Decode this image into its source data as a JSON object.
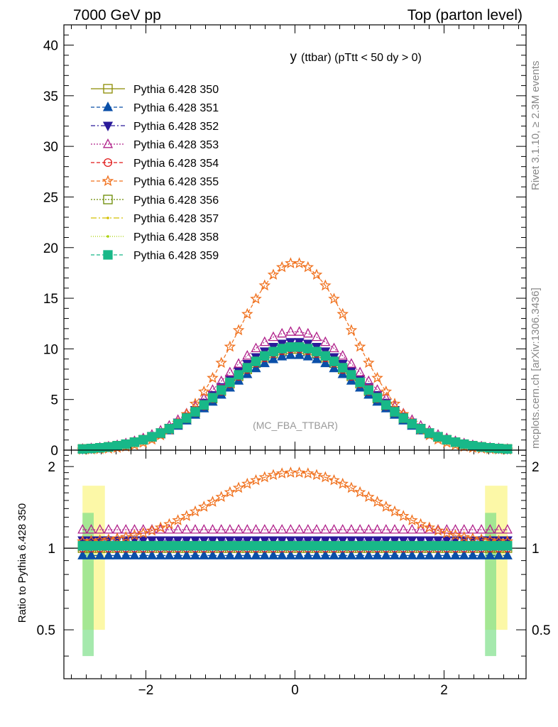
{
  "header": {
    "left": "7000 GeV pp",
    "right": "Top (parton level)"
  },
  "side_text": {
    "rivet": "Rivet 3.1.10, ≥ 2.3M events",
    "mcplots": "mcplots.cern.ch [arXiv:1306.3436]"
  },
  "chart_data": {
    "type": "line",
    "title": "y (ttbar) (pTtt < 50 dy > 0)",
    "title_main": "y",
    "title_sub": "(ttbar) (pTtt < 50 dy > 0)",
    "watermark": "(MC_FBA_TTBAR)",
    "main_panel": {
      "ylim": [
        0,
        42
      ],
      "yticks": [
        0,
        5,
        10,
        15,
        20,
        25,
        30,
        35,
        40
      ]
    },
    "ratio_panel": {
      "ylabel": "Ratio to Pythia 6.428 350",
      "ylim": [
        0.33,
        2.3
      ],
      "yticks": [
        0.5,
        1,
        2
      ],
      "reference_line": 1
    },
    "xlim": [
      -3.1,
      3.1
    ],
    "xticks": [
      -2,
      0,
      2
    ],
    "grid": false,
    "legend_position": "top-left",
    "x_range": [
      -2.85,
      2.85
    ],
    "n_bins": 50,
    "series": [
      {
        "name": "Pythia 6.428 350",
        "peak": 10.0,
        "ratio": 1.0,
        "color": "#8b8b00",
        "marker": "square-open",
        "dash": "",
        "sigma": 0.95
      },
      {
        "name": "Pythia 6.428 351",
        "peak": 9.4,
        "ratio": 0.94,
        "color": "#0a4fa8",
        "marker": "triangle-up",
        "dash": "5,3",
        "sigma": 0.95
      },
      {
        "name": "Pythia 6.428 352",
        "peak": 10.7,
        "ratio": 1.07,
        "color": "#2a1a9a",
        "marker": "triangle-down",
        "dash": "6,3,2,3",
        "sigma": 0.95
      },
      {
        "name": "Pythia 6.428 353",
        "peak": 11.7,
        "ratio": 1.17,
        "color": "#b0208a",
        "marker": "triangle-open",
        "dash": "2,2",
        "sigma": 0.95
      },
      {
        "name": "Pythia 6.428 354",
        "peak": 10.0,
        "ratio": 1.0,
        "color": "#e01818",
        "marker": "circle-open",
        "dash": "5,3",
        "sigma": 0.95
      },
      {
        "name": "Pythia 6.428 355",
        "peak": 18.5,
        "ratio": 1.85,
        "color": "#f0701c",
        "marker": "star-open",
        "dash": "5,3",
        "sigma": 0.8
      },
      {
        "name": "Pythia 6.428 356",
        "peak": 10.2,
        "ratio": 1.02,
        "color": "#6a8a00",
        "marker": "square-open",
        "dash": "2,2",
        "sigma": 0.95
      },
      {
        "name": "Pythia 6.428 357",
        "peak": 10.3,
        "ratio": 1.03,
        "color": "#d4c000",
        "marker": "dot",
        "dash": "8,3,2,3",
        "sigma": 0.95
      },
      {
        "name": "Pythia 6.428 358",
        "peak": 10.1,
        "ratio": 1.01,
        "color": "#a8d000",
        "marker": "dot",
        "dash": "1,2",
        "sigma": 0.95
      },
      {
        "name": "Pythia 6.428 359",
        "peak": 10.2,
        "ratio": 1.02,
        "color": "#18b888",
        "marker": "square-filled",
        "dash": "5,3",
        "sigma": 0.95
      }
    ]
  }
}
